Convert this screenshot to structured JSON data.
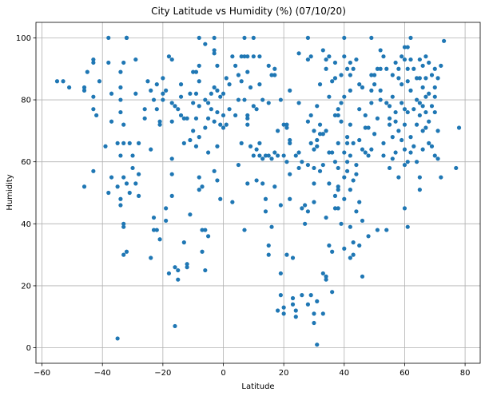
{
  "chart_data": {
    "type": "scatter",
    "title": "City Latitude vs Humidity (%) (07/10/20)",
    "xlabel": "Latitude",
    "ylabel": "Humidity",
    "xlim": [
      -62,
      85
    ],
    "ylim": [
      -5,
      105
    ],
    "xticks": [
      -60,
      -40,
      -20,
      0,
      20,
      40,
      60,
      80
    ],
    "yticks": [
      0,
      20,
      40,
      60,
      80,
      100
    ],
    "grid": true,
    "color": "#1f77b4",
    "points": [
      [
        -55,
        86
      ],
      [
        -53,
        86
      ],
      [
        -51,
        84
      ],
      [
        -46,
        84
      ],
      [
        -46,
        83
      ],
      [
        -46,
        52
      ],
      [
        -45,
        89
      ],
      [
        -43,
        92
      ],
      [
        -43,
        93
      ],
      [
        -43,
        81
      ],
      [
        -43,
        77
      ],
      [
        -43,
        57
      ],
      [
        -42,
        75
      ],
      [
        -41,
        86
      ],
      [
        -39,
        65
      ],
      [
        -38,
        92
      ],
      [
        -38,
        100
      ],
      [
        -38,
        50
      ],
      [
        -37,
        82
      ],
      [
        -37,
        73
      ],
      [
        -37,
        55
      ],
      [
        -35,
        66
      ],
      [
        -35,
        52
      ],
      [
        -35,
        3
      ],
      [
        -34,
        89
      ],
      [
        -34,
        84
      ],
      [
        -34,
        80
      ],
      [
        -34,
        76
      ],
      [
        -34,
        62
      ],
      [
        -34,
        48
      ],
      [
        -34,
        46
      ],
      [
        -33,
        92
      ],
      [
        -33,
        72
      ],
      [
        -33,
        66
      ],
      [
        -33,
        55
      ],
      [
        -33,
        40
      ],
      [
        -33,
        39
      ],
      [
        -33,
        30
      ],
      [
        -32,
        100
      ],
      [
        -32,
        100
      ],
      [
        -32,
        53
      ],
      [
        -32,
        31
      ],
      [
        -31,
        66
      ],
      [
        -31,
        50
      ],
      [
        -30,
        62
      ],
      [
        -30,
        58
      ],
      [
        -29,
        93
      ],
      [
        -29,
        82
      ],
      [
        -29,
        53
      ],
      [
        -28,
        66
      ],
      [
        -28,
        56
      ],
      [
        -28,
        49
      ],
      [
        -26,
        77
      ],
      [
        -26,
        74
      ],
      [
        -25,
        86
      ],
      [
        -24,
        83
      ],
      [
        -24,
        64
      ],
      [
        -24,
        29
      ],
      [
        -23,
        80
      ],
      [
        -23,
        42
      ],
      [
        -23,
        38
      ],
      [
        -22,
        85
      ],
      [
        -22,
        77
      ],
      [
        -22,
        38
      ],
      [
        -21,
        72
      ],
      [
        -21,
        73
      ],
      [
        -21,
        35
      ],
      [
        -20,
        82
      ],
      [
        -20,
        87
      ],
      [
        -20,
        80
      ],
      [
        -19,
        45
      ],
      [
        -19,
        41
      ],
      [
        -19,
        83
      ],
      [
        -18,
        94
      ],
      [
        -18,
        24
      ],
      [
        -17,
        93
      ],
      [
        -17,
        79
      ],
      [
        -17,
        73
      ],
      [
        -17,
        61
      ],
      [
        -17,
        56
      ],
      [
        -17,
        49
      ],
      [
        -16,
        7
      ],
      [
        -16,
        26
      ],
      [
        -16,
        78
      ],
      [
        -15,
        77
      ],
      [
        -15,
        25
      ],
      [
        -15,
        22
      ],
      [
        -14,
        81
      ],
      [
        -14,
        85
      ],
      [
        -14,
        75
      ],
      [
        -13,
        74
      ],
      [
        -13,
        66
      ],
      [
        -13,
        34
      ],
      [
        -12,
        26
      ],
      [
        -12,
        27
      ],
      [
        -12,
        74
      ],
      [
        -11,
        82
      ],
      [
        -11,
        43
      ],
      [
        -11,
        67
      ],
      [
        -10,
        89
      ],
      [
        -10,
        70
      ],
      [
        -10,
        79
      ],
      [
        -9,
        65
      ],
      [
        -9,
        74
      ],
      [
        -9,
        82
      ],
      [
        -9,
        89
      ],
      [
        -8,
        100
      ],
      [
        -8,
        91
      ],
      [
        -8,
        86
      ],
      [
        -8,
        78
      ],
      [
        -8,
        68
      ],
      [
        -8,
        55
      ],
      [
        -8,
        51
      ],
      [
        -7,
        52
      ],
      [
        -7,
        38
      ],
      [
        -7,
        31
      ],
      [
        -6,
        71
      ],
      [
        -6,
        25
      ],
      [
        -6,
        80
      ],
      [
        -6,
        98
      ],
      [
        -6,
        38
      ],
      [
        -5,
        36
      ],
      [
        -5,
        74
      ],
      [
        -5,
        63
      ],
      [
        -5,
        79
      ],
      [
        -4,
        82
      ],
      [
        -4,
        77
      ],
      [
        -3,
        100
      ],
      [
        -3,
        96
      ],
      [
        -3,
        95
      ],
      [
        -3,
        84
      ],
      [
        -3,
        73
      ],
      [
        -3,
        57
      ],
      [
        -2,
        83
      ],
      [
        -2,
        76
      ],
      [
        -2,
        91
      ],
      [
        -2,
        65
      ],
      [
        -2,
        54
      ],
      [
        -1,
        81
      ],
      [
        -1,
        72
      ],
      [
        -1,
        48
      ],
      [
        0,
        82
      ],
      [
        0,
        75
      ],
      [
        0,
        71
      ],
      [
        1,
        87
      ],
      [
        1,
        72
      ],
      [
        2,
        85
      ],
      [
        2,
        77
      ],
      [
        3,
        47
      ],
      [
        3,
        94
      ],
      [
        4,
        91
      ],
      [
        4,
        75
      ],
      [
        5,
        88
      ],
      [
        5,
        59
      ],
      [
        5,
        80
      ],
      [
        6,
        86
      ],
      [
        6,
        66
      ],
      [
        6,
        94
      ],
      [
        7,
        94
      ],
      [
        7,
        80
      ],
      [
        7,
        100
      ],
      [
        7,
        38
      ],
      [
        8,
        89
      ],
      [
        8,
        94
      ],
      [
        8,
        75
      ],
      [
        8,
        74
      ],
      [
        8,
        72
      ],
      [
        8,
        53
      ],
      [
        9,
        84
      ],
      [
        9,
        65
      ],
      [
        10,
        100
      ],
      [
        10,
        94
      ],
      [
        10,
        78
      ],
      [
        10,
        62
      ],
      [
        11,
        77
      ],
      [
        11,
        54
      ],
      [
        11,
        64
      ],
      [
        12,
        94
      ],
      [
        12,
        66
      ],
      [
        12,
        85
      ],
      [
        12,
        62
      ],
      [
        13,
        80
      ],
      [
        13,
        61
      ],
      [
        13,
        53
      ],
      [
        14,
        62
      ],
      [
        14,
        48
      ],
      [
        14,
        44
      ],
      [
        15,
        91
      ],
      [
        15,
        79
      ],
      [
        15,
        62
      ],
      [
        15,
        33
      ],
      [
        15,
        30
      ],
      [
        16,
        88
      ],
      [
        16,
        61
      ],
      [
        16,
        39
      ],
      [
        17,
        90
      ],
      [
        17,
        63
      ],
      [
        17,
        52
      ],
      [
        17,
        88
      ],
      [
        18,
        62
      ],
      [
        18,
        12
      ],
      [
        18,
        70
      ],
      [
        19,
        80
      ],
      [
        19,
        24
      ],
      [
        19,
        17
      ],
      [
        19,
        46
      ],
      [
        20,
        72
      ],
      [
        20,
        62
      ],
      [
        20,
        11
      ],
      [
        20,
        13
      ],
      [
        21,
        72
      ],
      [
        21,
        60
      ],
      [
        21,
        71
      ],
      [
        21,
        30
      ],
      [
        22,
        83
      ],
      [
        22,
        66
      ],
      [
        22,
        67
      ],
      [
        22,
        56
      ],
      [
        22,
        48
      ],
      [
        23,
        29
      ],
      [
        23,
        16
      ],
      [
        23,
        14
      ],
      [
        24,
        62
      ],
      [
        24,
        10
      ],
      [
        24,
        12
      ],
      [
        25,
        95
      ],
      [
        25,
        79
      ],
      [
        25,
        63
      ],
      [
        25,
        58
      ],
      [
        26,
        60
      ],
      [
        26,
        45
      ],
      [
        26,
        17
      ],
      [
        27,
        46
      ],
      [
        27,
        40
      ],
      [
        28,
        100
      ],
      [
        28,
        93
      ],
      [
        28,
        73
      ],
      [
        28,
        59
      ],
      [
        28,
        44
      ],
      [
        28,
        14
      ],
      [
        29,
        94
      ],
      [
        29,
        75
      ],
      [
        29,
        66
      ],
      [
        29,
        17
      ],
      [
        30,
        70
      ],
      [
        30,
        64
      ],
      [
        30,
        58
      ],
      [
        30,
        53
      ],
      [
        30,
        47
      ],
      [
        30,
        11
      ],
      [
        30,
        8
      ],
      [
        31,
        78
      ],
      [
        31,
        67
      ],
      [
        31,
        65
      ],
      [
        31,
        15
      ],
      [
        31,
        1
      ],
      [
        32,
        85
      ],
      [
        32,
        72
      ],
      [
        32,
        69
      ],
      [
        32,
        57
      ],
      [
        33,
        96
      ],
      [
        33,
        69
      ],
      [
        33,
        59
      ],
      [
        33,
        24
      ],
      [
        33,
        11
      ],
      [
        34,
        93
      ],
      [
        34,
        90
      ],
      [
        34,
        70
      ],
      [
        34,
        42
      ],
      [
        34,
        23
      ],
      [
        34,
        22
      ],
      [
        35,
        94
      ],
      [
        35,
        81
      ],
      [
        35,
        63
      ],
      [
        35,
        53
      ],
      [
        35,
        33
      ],
      [
        36,
        86
      ],
      [
        36,
        63
      ],
      [
        36,
        18
      ],
      [
        36,
        31
      ],
      [
        37,
        92
      ],
      [
        37,
        87
      ],
      [
        37,
        75
      ],
      [
        37,
        60
      ],
      [
        37,
        49
      ],
      [
        37,
        45
      ],
      [
        38,
        77
      ],
      [
        38,
        75
      ],
      [
        38,
        66
      ],
      [
        38,
        58
      ],
      [
        38,
        52
      ],
      [
        38,
        51
      ],
      [
        38,
        45
      ],
      [
        39,
        88
      ],
      [
        39,
        79
      ],
      [
        39,
        73
      ],
      [
        39,
        40
      ],
      [
        40,
        100
      ],
      [
        40,
        94
      ],
      [
        40,
        81
      ],
      [
        40,
        63
      ],
      [
        40,
        55
      ],
      [
        40,
        48
      ],
      [
        40,
        32
      ],
      [
        41,
        90
      ],
      [
        41,
        68
      ],
      [
        41,
        66
      ],
      [
        41,
        60
      ],
      [
        41,
        57
      ],
      [
        42,
        92
      ],
      [
        42,
        88
      ],
      [
        42,
        83
      ],
      [
        42,
        72
      ],
      [
        42,
        62
      ],
      [
        42,
        51
      ],
      [
        42,
        39
      ],
      [
        42,
        29
      ],
      [
        43,
        90
      ],
      [
        43,
        66
      ],
      [
        43,
        54
      ],
      [
        43,
        34
      ],
      [
        43,
        30
      ],
      [
        44,
        93
      ],
      [
        44,
        59
      ],
      [
        44,
        56
      ],
      [
        44,
        44
      ],
      [
        45,
        85
      ],
      [
        45,
        77
      ],
      [
        45,
        67
      ],
      [
        45,
        47
      ],
      [
        45,
        33
      ],
      [
        46,
        84
      ],
      [
        46,
        64
      ],
      [
        46,
        41
      ],
      [
        46,
        23
      ],
      [
        47,
        75
      ],
      [
        47,
        71
      ],
      [
        47,
        63
      ],
      [
        48,
        71
      ],
      [
        48,
        62
      ],
      [
        48,
        36
      ],
      [
        49,
        100
      ],
      [
        49,
        88
      ],
      [
        49,
        83
      ],
      [
        49,
        79
      ],
      [
        49,
        64
      ],
      [
        50,
        88
      ],
      [
        50,
        85
      ],
      [
        50,
        69
      ],
      [
        51,
        90
      ],
      [
        51,
        74
      ],
      [
        51,
        38
      ],
      [
        52,
        96
      ],
      [
        52,
        90
      ],
      [
        52,
        83
      ],
      [
        52,
        80
      ],
      [
        53,
        94
      ],
      [
        53,
        66
      ],
      [
        53,
        62
      ],
      [
        54,
        90
      ],
      [
        54,
        79
      ],
      [
        54,
        38
      ],
      [
        55,
        78
      ],
      [
        55,
        74
      ],
      [
        55,
        72
      ],
      [
        55,
        58
      ],
      [
        56,
        88
      ],
      [
        56,
        81
      ],
      [
        56,
        68
      ],
      [
        56,
        61
      ],
      [
        57,
        92
      ],
      [
        57,
        76
      ],
      [
        57,
        73
      ],
      [
        57,
        63
      ],
      [
        58,
        90
      ],
      [
        58,
        87
      ],
      [
        58,
        70
      ],
      [
        58,
        55
      ],
      [
        59,
        94
      ],
      [
        59,
        85
      ],
      [
        59,
        79
      ],
      [
        59,
        67
      ],
      [
        60,
        97
      ],
      [
        60,
        93
      ],
      [
        60,
        77
      ],
      [
        60,
        72
      ],
      [
        60,
        64
      ],
      [
        60,
        59
      ],
      [
        60,
        45
      ],
      [
        61,
        97
      ],
      [
        61,
        90
      ],
      [
        61,
        86
      ],
      [
        61,
        76
      ],
      [
        61,
        60
      ],
      [
        61,
        39
      ],
      [
        62,
        100
      ],
      [
        62,
        93
      ],
      [
        62,
        83
      ],
      [
        62,
        68
      ],
      [
        62,
        63
      ],
      [
        63,
        90
      ],
      [
        63,
        77
      ],
      [
        63,
        65
      ],
      [
        64,
        87
      ],
      [
        64,
        80
      ],
      [
        64,
        72
      ],
      [
        64,
        60
      ],
      [
        65,
        93
      ],
      [
        65,
        87
      ],
      [
        65,
        79
      ],
      [
        65,
        75
      ],
      [
        65,
        55
      ],
      [
        65,
        51
      ],
      [
        66,
        91
      ],
      [
        66,
        84
      ],
      [
        66,
        78
      ],
      [
        66,
        70
      ],
      [
        66,
        64
      ],
      [
        67,
        94
      ],
      [
        67,
        87
      ],
      [
        67,
        81
      ],
      [
        67,
        76
      ],
      [
        67,
        71
      ],
      [
        68,
        92
      ],
      [
        68,
        82
      ],
      [
        68,
        73
      ],
      [
        68,
        66
      ],
      [
        69,
        88
      ],
      [
        69,
        78
      ],
      [
        69,
        65
      ],
      [
        70,
        90
      ],
      [
        70,
        84
      ],
      [
        70,
        81
      ],
      [
        70,
        76
      ],
      [
        70,
        62
      ],
      [
        71,
        87
      ],
      [
        71,
        70
      ],
      [
        71,
        61
      ],
      [
        72,
        91
      ],
      [
        72,
        55
      ],
      [
        73,
        99
      ],
      [
        77,
        58
      ],
      [
        78,
        71
      ]
    ]
  }
}
